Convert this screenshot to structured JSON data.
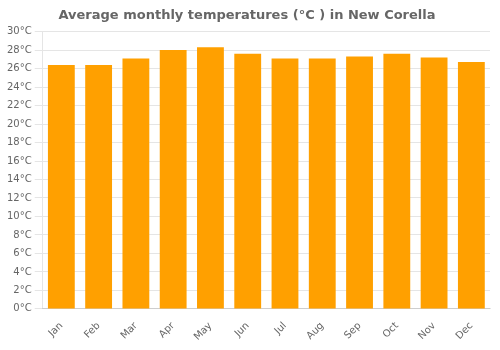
{
  "chart_data": {
    "type": "bar",
    "title": "Average monthly temperatures (°C ) in New Corella",
    "categories": [
      "Jan",
      "Feb",
      "Mar",
      "Apr",
      "May",
      "Jun",
      "Jul",
      "Aug",
      "Sep",
      "Oct",
      "Nov",
      "Dec"
    ],
    "values": [
      26.4,
      26.4,
      27.1,
      28.0,
      28.3,
      27.6,
      27.1,
      27.1,
      27.3,
      27.6,
      27.2,
      26.7
    ],
    "color": "#FFA000",
    "ylim": [
      0,
      30
    ],
    "yticks": [
      {
        "value": 0,
        "label": "0°C"
      },
      {
        "value": 2,
        "label": "2°C"
      },
      {
        "value": 4,
        "label": "4°C"
      },
      {
        "value": 6,
        "label": "6°C"
      },
      {
        "value": 8,
        "label": "8°C"
      },
      {
        "value": 10,
        "label": "10°C"
      },
      {
        "value": 12,
        "label": "12°C"
      },
      {
        "value": 14,
        "label": "14°C"
      },
      {
        "value": 16,
        "label": "16°C"
      },
      {
        "value": 18,
        "label": "18°C"
      },
      {
        "value": 20,
        "label": "20°C"
      },
      {
        "value": 22,
        "label": "22°C"
      },
      {
        "value": 24,
        "label": "24°C"
      },
      {
        "value": 26,
        "label": "26°C"
      },
      {
        "value": 28,
        "label": "28°C"
      },
      {
        "value": 30,
        "label": "30°C"
      }
    ],
    "grid": true
  }
}
